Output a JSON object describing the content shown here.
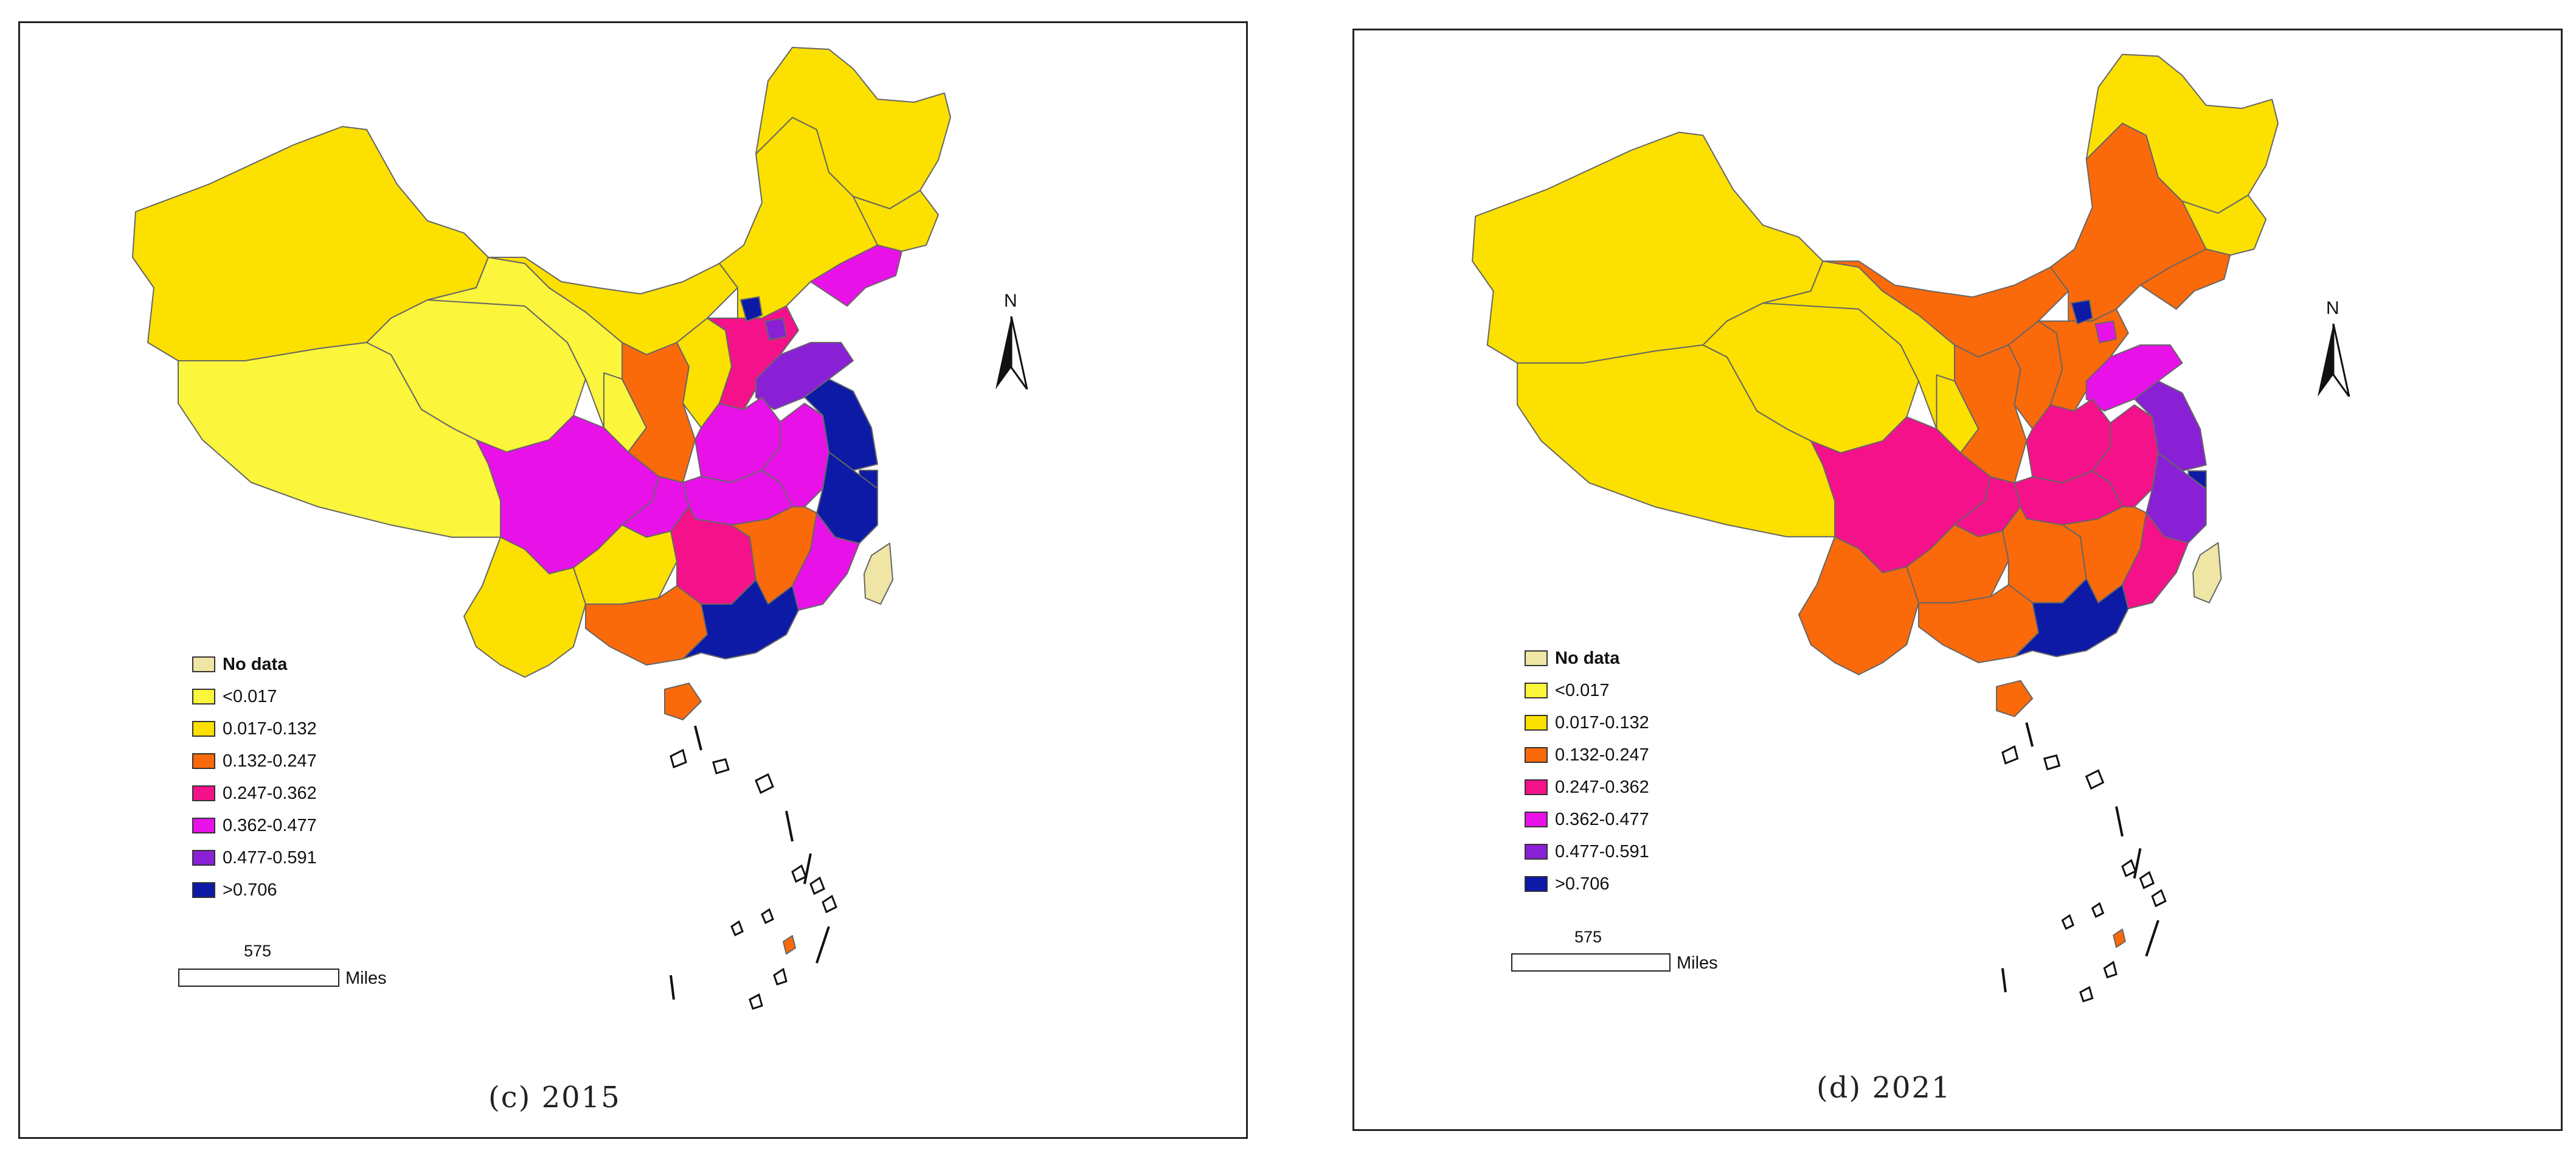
{
  "colors": {
    "no_data": "#efe6a5",
    "c1": "#fbf53c",
    "c2": "#fbe000",
    "c3": "#fa6a0a",
    "c4": "#f5118a",
    "c5": "#e812e8",
    "c6": "#8a20d6",
    "c7": "#0c1aa6",
    "border": "#666666",
    "outline": "#111111"
  },
  "legend": {
    "items": [
      {
        "label": "No data",
        "color": "#efe6a5"
      },
      {
        "label": "<0.017",
        "color": "#fbf53c"
      },
      {
        "label": "0.017-0.132",
        "color": "#fbe000"
      },
      {
        "label": "0.132-0.247",
        "color": "#fa6a0a"
      },
      {
        "label": "0.247-0.362",
        "color": "#f5118a"
      },
      {
        "label": "0.362-0.477",
        "color": "#e812e8"
      },
      {
        "label": "0.477-0.591",
        "color": "#8a20d6"
      },
      {
        "label": ">0.706",
        "color": "#0c1aa6"
      }
    ]
  },
  "scale": {
    "value": "575",
    "unit": "Miles"
  },
  "north_label": "N",
  "panels": [
    {
      "caption": "(c)  2015",
      "regions": {
        "tibet": 1,
        "xinjiang": 2,
        "qinghai": 1,
        "gansu": 1,
        "inner_mongolia_west": 2,
        "inner_mongolia_east": 2,
        "heilongjiang": 2,
        "jilin": 2,
        "liaoning": 5,
        "ningxia": 1,
        "shaanxi": 3,
        "shanxi": 2,
        "hebei": 4,
        "beijing": 7,
        "tianjin": 6,
        "shandong": 6,
        "henan": 5,
        "sichuan": 5,
        "chongqing": 5,
        "hubei": 5,
        "anhui": 5,
        "jiangsu": 7,
        "shanghai": 7,
        "zhejiang": 7,
        "yunnan": 2,
        "guizhou": 2,
        "hunan": 4,
        "jiangxi": 3,
        "fujian": 5,
        "guangxi": 3,
        "guangdong": 7,
        "hainan": 3,
        "taiwan": 0,
        "south_island": 3
      }
    },
    {
      "caption": "(d)  2021",
      "regions": {
        "tibet": 2,
        "xinjiang": 2,
        "qinghai": 2,
        "gansu": 2,
        "inner_mongolia_west": 3,
        "inner_mongolia_east": 3,
        "heilongjiang": 2,
        "jilin": 2,
        "liaoning": 3,
        "ningxia": 2,
        "shaanxi": 3,
        "shanxi": 3,
        "hebei": 3,
        "beijing": 7,
        "tianjin": 5,
        "shandong": 5,
        "henan": 4,
        "sichuan": 4,
        "chongqing": 4,
        "hubei": 4,
        "anhui": 4,
        "jiangsu": 6,
        "shanghai": 7,
        "zhejiang": 6,
        "yunnan": 3,
        "guizhou": 3,
        "hunan": 3,
        "jiangxi": 3,
        "fujian": 4,
        "guangxi": 3,
        "guangdong": 7,
        "hainan": 3,
        "taiwan": 0,
        "south_island": 3
      }
    }
  ]
}
